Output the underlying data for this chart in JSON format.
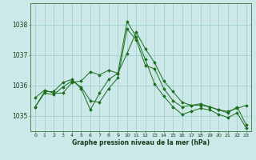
{
  "title": "Graphe pression niveau de la mer (hPa)",
  "bg_color": "#cce8e8",
  "grid_color": "#99cccc",
  "line_color": "#1a6e1a",
  "marker_color": "#1a6e1a",
  "xlim": [
    -0.5,
    23.5
  ],
  "ylim": [
    1034.5,
    1038.7
  ],
  "yticks": [
    1035,
    1036,
    1037,
    1038
  ],
  "xticks": [
    0,
    1,
    2,
    3,
    4,
    5,
    6,
    7,
    8,
    9,
    10,
    11,
    12,
    13,
    14,
    15,
    16,
    17,
    18,
    19,
    20,
    21,
    22,
    23
  ],
  "series": [
    [
      1035.6,
      1035.85,
      1035.75,
      1035.75,
      1036.1,
      1036.15,
      1036.45,
      1036.35,
      1036.5,
      1036.4,
      1037.05,
      1037.75,
      1037.2,
      1036.75,
      1036.15,
      1035.8,
      1035.45,
      1035.35,
      1035.35,
      1035.3,
      1035.2,
      1035.15,
      1035.25,
      1035.35
    ],
    [
      1035.3,
      1035.75,
      1035.7,
      1035.95,
      1036.15,
      1035.95,
      1035.5,
      1035.45,
      1035.9,
      1036.25,
      1037.85,
      1037.5,
      1036.65,
      1036.55,
      1035.9,
      1035.5,
      1035.3,
      1035.35,
      1035.4,
      1035.3,
      1035.2,
      1035.1,
      1035.3,
      1034.7
    ],
    [
      1035.3,
      1035.8,
      1035.8,
      1036.1,
      1036.2,
      1035.9,
      1035.2,
      1035.75,
      1036.2,
      1036.4,
      1038.1,
      1037.6,
      1036.85,
      1036.05,
      1035.65,
      1035.3,
      1035.05,
      1035.15,
      1035.25,
      1035.2,
      1035.05,
      1034.95,
      1035.1,
      1034.6
    ]
  ]
}
